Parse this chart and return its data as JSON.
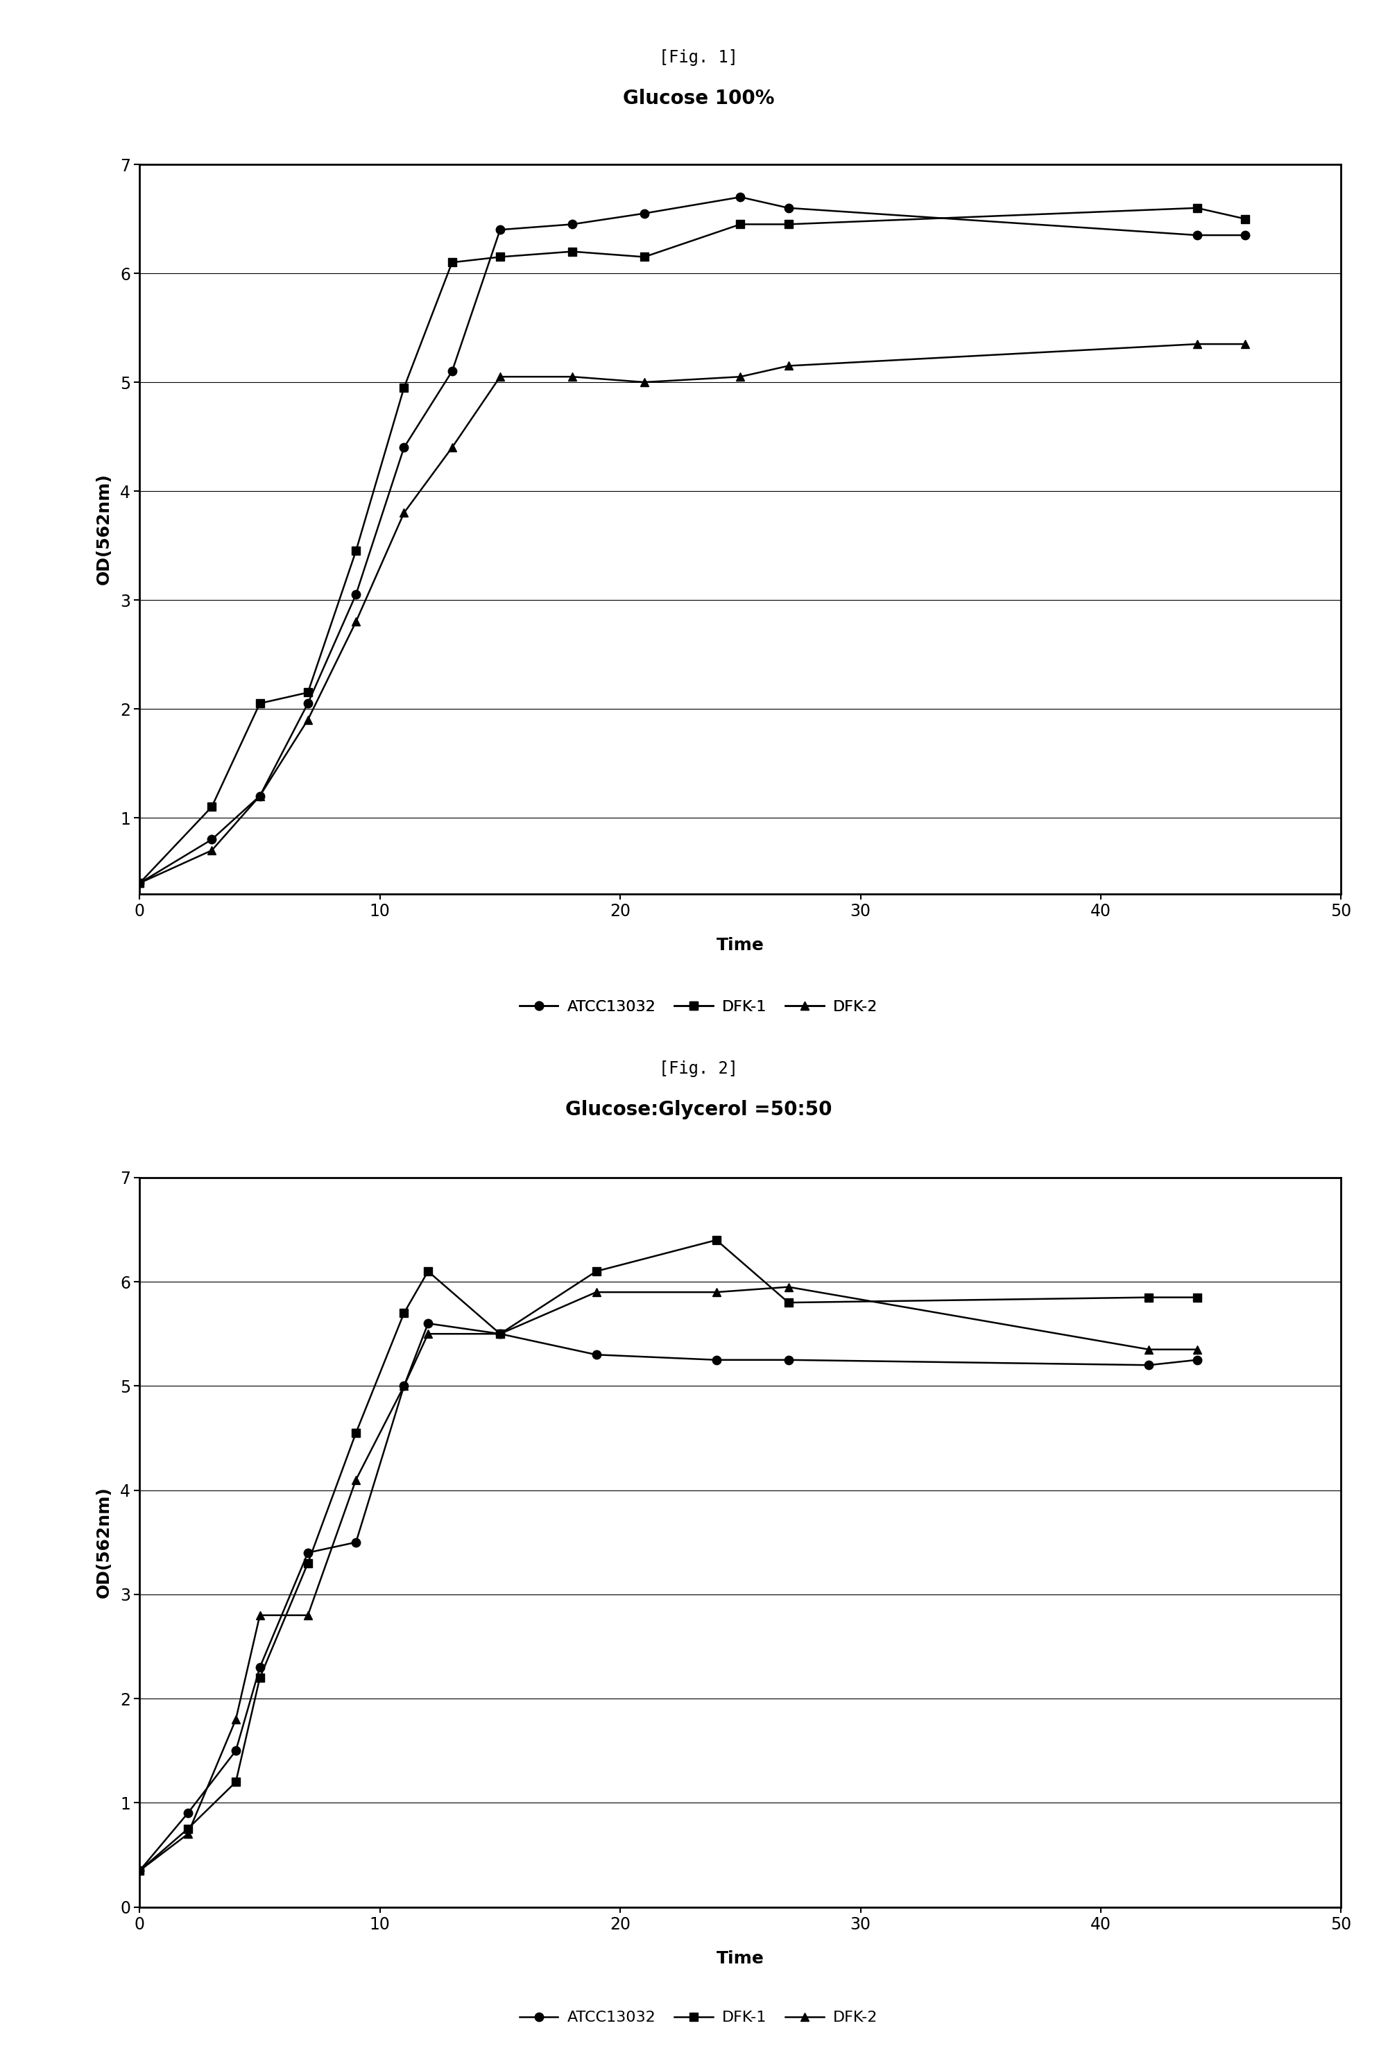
{
  "fig1_title": "Glucose 100%",
  "fig2_title": "Glucose:Glycerol =50:50",
  "header1": "[Fig. 1]",
  "header2": "[Fig. 2]",
  "xlabel": "Time",
  "ylabel": "OD(562nm)",
  "fig1_ATCC13032_x": [
    0,
    3,
    5,
    7,
    9,
    11,
    13,
    15,
    18,
    21,
    25,
    27,
    44,
    46
  ],
  "fig1_ATCC13032_y": [
    0.4,
    0.8,
    1.2,
    2.05,
    3.05,
    4.4,
    5.1,
    6.4,
    6.45,
    6.55,
    6.7,
    6.6,
    6.35,
    6.35
  ],
  "fig1_DFK1_x": [
    0,
    3,
    5,
    7,
    9,
    11,
    13,
    15,
    18,
    21,
    25,
    27,
    44,
    46
  ],
  "fig1_DFK1_y": [
    0.4,
    1.1,
    2.05,
    2.15,
    3.45,
    4.95,
    6.1,
    6.15,
    6.2,
    6.15,
    6.45,
    6.45,
    6.6,
    6.5
  ],
  "fig1_DFK2_x": [
    0,
    3,
    5,
    7,
    9,
    11,
    13,
    15,
    18,
    21,
    25,
    27,
    44,
    46
  ],
  "fig1_DFK2_y": [
    0.4,
    0.7,
    1.2,
    1.9,
    2.8,
    3.8,
    4.4,
    5.05,
    5.05,
    5.0,
    5.05,
    5.15,
    5.35,
    5.35
  ],
  "fig2_ATCC13032_x": [
    0,
    2,
    4,
    5,
    7,
    9,
    11,
    12,
    15,
    19,
    24,
    27,
    42,
    44
  ],
  "fig2_ATCC13032_y": [
    0.35,
    0.9,
    1.5,
    2.3,
    3.4,
    3.5,
    5.0,
    5.6,
    5.5,
    5.3,
    5.25,
    5.25,
    5.2,
    5.25
  ],
  "fig2_DFK1_x": [
    0,
    2,
    4,
    5,
    7,
    9,
    11,
    12,
    15,
    19,
    24,
    27,
    42,
    44
  ],
  "fig2_DFK1_y": [
    0.35,
    0.75,
    1.2,
    2.2,
    3.3,
    4.55,
    5.7,
    6.1,
    5.5,
    6.1,
    6.4,
    5.8,
    5.85,
    5.85
  ],
  "fig2_DFK2_x": [
    0,
    2,
    4,
    5,
    7,
    9,
    11,
    12,
    15,
    19,
    24,
    27,
    42,
    44
  ],
  "fig2_DFK2_y": [
    0.35,
    0.7,
    1.8,
    2.8,
    2.8,
    4.1,
    5.0,
    5.5,
    5.5,
    5.9,
    5.9,
    5.95,
    5.35,
    5.35
  ],
  "xlim": [
    0,
    50
  ],
  "fig1_ylim": [
    0.3,
    7.0
  ],
  "fig2_ylim": [
    0.0,
    7.0
  ],
  "fig1_yticks": [
    1,
    2,
    3,
    4,
    5,
    6,
    7
  ],
  "fig2_yticks": [
    0,
    1,
    2,
    3,
    4,
    5,
    6,
    7
  ],
  "xticks": [
    0,
    10,
    20,
    30,
    40,
    50
  ],
  "line_color": "#000000",
  "markersize": 9,
  "linewidth": 1.8,
  "title_fontsize": 20,
  "label_fontsize": 18,
  "tick_fontsize": 17,
  "legend_fontsize": 16,
  "header_fontsize": 17,
  "background_color": "#ffffff"
}
